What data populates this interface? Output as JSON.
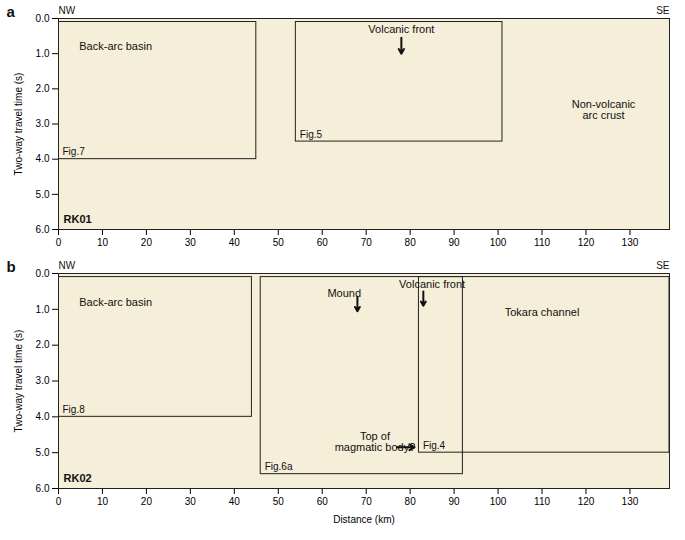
{
  "chart_data": [
    {
      "type": "seismic_profile",
      "panel": "a",
      "line_name": "RK01",
      "corner_labels": {
        "left": "NW",
        "right": "SE"
      },
      "xlabel": null,
      "ylabel": "Two-way travel time (s)",
      "xlim": [
        0,
        139
      ],
      "ylim": [
        0,
        6
      ],
      "xticks": [
        0,
        10,
        20,
        30,
        40,
        50,
        60,
        70,
        80,
        90,
        100,
        110,
        120,
        130
      ],
      "yticks": [
        {
          "value": 0,
          "label": "0.0"
        },
        {
          "value": 1,
          "label": "1.0"
        },
        {
          "value": 2,
          "label": "2.0"
        },
        {
          "value": 3,
          "label": "3.0"
        },
        {
          "value": 4,
          "label": "4.0"
        },
        {
          "value": 5,
          "label": "5.0"
        },
        {
          "value": 6,
          "label": "6.0"
        }
      ],
      "boxes": [
        {
          "label": "Fig.7",
          "x": [
            0,
            45
          ],
          "y": [
            0.1,
            4.0
          ]
        },
        {
          "label": "Fig.5",
          "x": [
            54,
            101
          ],
          "y": [
            0.1,
            3.5
          ]
        }
      ],
      "annotations": [
        {
          "text": "Back-arc basin",
          "x": 13,
          "y": 0.8
        },
        {
          "text": "Volcanic front",
          "x": 78,
          "y": 0.3
        },
        {
          "text": "Non-volcanic\narc crust",
          "x": 124,
          "y": 2.6
        }
      ],
      "arrows": [
        {
          "x1": 78,
          "y1": 0.55,
          "x2": 78,
          "y2": 1.0
        }
      ]
    },
    {
      "type": "seismic_profile",
      "panel": "b",
      "line_name": "RK02",
      "corner_labels": {
        "left": "NW",
        "right": "SE"
      },
      "xlabel": "Distance (km)",
      "ylabel": "Two-way travel time (s)",
      "xlim": [
        0,
        139
      ],
      "ylim": [
        0,
        6
      ],
      "xticks": [
        0,
        10,
        20,
        30,
        40,
        50,
        60,
        70,
        80,
        90,
        100,
        110,
        120,
        130
      ],
      "yticks": [
        {
          "value": 0,
          "label": "0.0"
        },
        {
          "value": 1,
          "label": "1.0"
        },
        {
          "value": 2,
          "label": "2.0"
        },
        {
          "value": 3,
          "label": "3.0"
        },
        {
          "value": 4,
          "label": "4.0"
        },
        {
          "value": 5,
          "label": "5.0"
        },
        {
          "value": 6,
          "label": "6.0"
        }
      ],
      "boxes": [
        {
          "label": "Fig.8",
          "x": [
            0,
            44
          ],
          "y": [
            0.1,
            4.0
          ]
        },
        {
          "label": "Fig.6a",
          "x": [
            46,
            92
          ],
          "y": [
            0.1,
            5.6
          ]
        },
        {
          "label": "Fig.4",
          "x": [
            82,
            139
          ],
          "y": [
            0.1,
            5.0
          ]
        }
      ],
      "annotations": [
        {
          "text": "Back-arc basin",
          "x": 13,
          "y": 0.8
        },
        {
          "text": "Mound",
          "x": 65,
          "y": 0.55
        },
        {
          "text": "Volcanic front",
          "x": 85,
          "y": 0.3
        },
        {
          "text": "Tokara channel",
          "x": 110,
          "y": 1.1
        },
        {
          "text": "Top of\nmagmatic body?",
          "x": 72,
          "y": 4.7
        }
      ],
      "arrows": [
        {
          "x1": 68,
          "y1": 0.65,
          "x2": 68,
          "y2": 1.05
        },
        {
          "x1": 83,
          "y1": 0.5,
          "x2": 83,
          "y2": 0.9
        },
        {
          "x1": 77,
          "y1": 4.85,
          "x2": 81,
          "y2": 4.85
        }
      ]
    }
  ]
}
